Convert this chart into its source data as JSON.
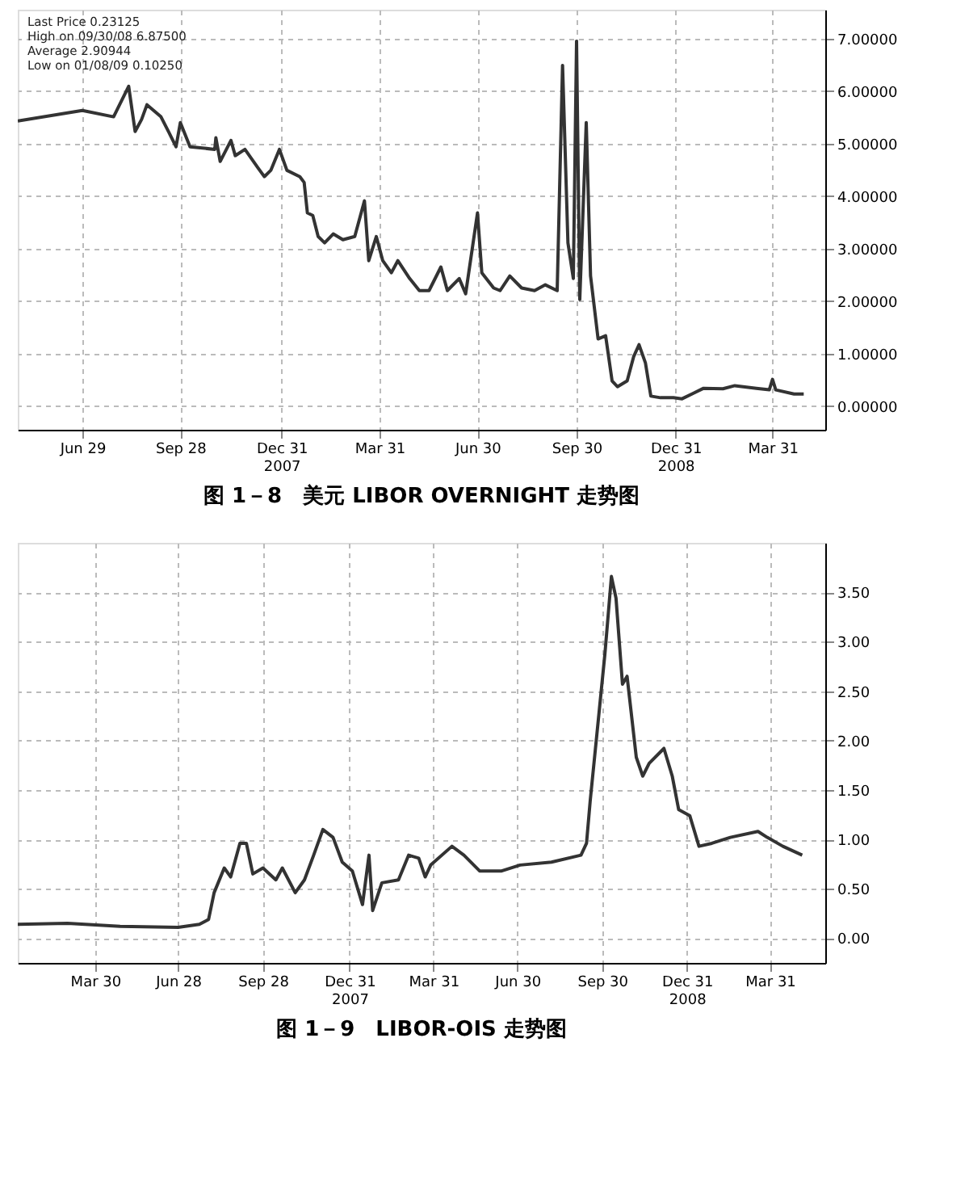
{
  "chart_data": [
    {
      "type": "line",
      "title": "图 1－8　美元 LIBOR OVERNIGHT 走势图",
      "annotations": [
        "Last Price  0.23125",
        "High on  09/30/08  6.87500",
        "Average  2.90944",
        "Low on  01/08/09  0.10250"
      ],
      "x": [
        "2007-04-30",
        "2007-06-29",
        "2007-07-28",
        "2007-08-11",
        "2007-08-17",
        "2007-08-23",
        "2007-08-28",
        "2007-09-10",
        "2007-09-17",
        "2007-09-24",
        "2007-09-28",
        "2007-10-07",
        "2007-10-30",
        "2007-10-31",
        "2007-11-04",
        "2007-11-14",
        "2007-11-18",
        "2007-11-27",
        "2007-12-09",
        "2007-12-15",
        "2007-12-21",
        "2007-12-29",
        "2008-01-05",
        "2008-01-17",
        "2008-01-21",
        "2008-01-24",
        "2008-01-29",
        "2008-02-03",
        "2008-02-09",
        "2008-02-17",
        "2008-02-26",
        "2008-03-08",
        "2008-03-17",
        "2008-03-21",
        "2008-03-28",
        "2008-04-03",
        "2008-04-11",
        "2008-04-17",
        "2008-04-28",
        "2008-05-07",
        "2008-05-16",
        "2008-05-27",
        "2008-06-02",
        "2008-06-13",
        "2008-06-19",
        "2008-06-30",
        "2008-07-04",
        "2008-07-15",
        "2008-07-21",
        "2008-07-30",
        "2008-08-10",
        "2008-08-22",
        "2008-09-01",
        "2008-09-12",
        "2008-09-17",
        "2008-09-22",
        "2008-09-27",
        "2008-09-30",
        "2008-10-03",
        "2008-10-09",
        "2008-10-13",
        "2008-10-20",
        "2008-10-27",
        "2008-11-02",
        "2008-11-07",
        "2008-11-16",
        "2008-11-22",
        "2008-11-27",
        "2008-12-03",
        "2008-12-08",
        "2008-12-17",
        "2008-12-29",
        "2009-01-06",
        "2009-01-17",
        "2009-01-26",
        "2009-02-13",
        "2009-02-24",
        "2009-03-16",
        "2009-03-28",
        "2009-03-31",
        "2009-04-03",
        "2009-04-20",
        "2009-04-29"
      ],
      "series": [
        {
          "color": "#333333",
          "values": [
            5.43,
            5.63,
            5.51,
            6.09,
            5.23,
            5.46,
            5.74,
            5.51,
            5.23,
            4.94,
            5.4,
            4.94,
            4.89,
            5.11,
            4.66,
            5.06,
            4.77,
            4.89,
            4.54,
            4.37,
            4.49,
            4.89,
            4.49,
            4.37,
            4.26,
            3.68,
            3.63,
            3.23,
            3.11,
            3.28,
            3.17,
            3.23,
            3.91,
            2.77,
            3.23,
            2.77,
            2.54,
            2.77,
            2.43,
            2.2,
            2.2,
            2.65,
            2.2,
            2.43,
            2.14,
            3.68,
            2.54,
            2.25,
            2.2,
            2.48,
            2.25,
            2.2,
            2.31,
            2.2,
            6.49,
            3.11,
            2.43,
            6.95,
            2.03,
            5.4,
            2.48,
            1.28,
            1.34,
            0.48,
            0.37,
            0.48,
            0.94,
            1.17,
            0.82,
            0.19,
            0.16,
            0.16,
            0.14,
            0.25,
            0.34,
            0.33,
            0.39,
            0.34,
            0.31,
            0.51,
            0.31,
            0.23,
            0.23
          ]
        }
      ],
      "xlim": [
        "2007-04-30",
        "2009-05-19"
      ],
      "xticks": [
        {
          "value": "2007-06-29",
          "label": "Jun 29"
        },
        {
          "value": "2007-09-28",
          "label": "Sep 28"
        },
        {
          "value": "2007-12-31",
          "label": "Dec 31\n2007"
        },
        {
          "value": "2008-03-31",
          "label": "Mar 31"
        },
        {
          "value": "2008-06-30",
          "label": "Jun 30"
        },
        {
          "value": "2008-09-30",
          "label": "Sep 30"
        },
        {
          "value": "2008-12-31",
          "label": "Dec 31\n2008"
        },
        {
          "value": "2009-03-31",
          "label": "Mar 31"
        }
      ],
      "ylim": [
        -0.45,
        7.55
      ],
      "yticks": [
        {
          "value": 0,
          "label": "0.00000"
        },
        {
          "value": 1,
          "label": "1.00000"
        },
        {
          "value": 2,
          "label": "2.00000"
        },
        {
          "value": 3,
          "label": "3.00000"
        },
        {
          "value": 4,
          "label": "4.00000"
        },
        {
          "value": 5,
          "label": "5.00000"
        },
        {
          "value": 6,
          "label": "6.00000"
        },
        {
          "value": 7,
          "label": "7.00000"
        }
      ],
      "grid": true,
      "line_style": "solid",
      "marker": "none"
    },
    {
      "type": "line",
      "title": "图 1－9　LIBOR-OIS 走势图",
      "x": [
        "2007-01-05",
        "2007-02-28",
        "2007-04-26",
        "2007-06-28",
        "2007-07-21",
        "2007-07-31",
        "2007-08-06",
        "2007-08-17",
        "2007-08-24",
        "2007-09-03",
        "2007-09-10",
        "2007-09-17",
        "2007-09-28",
        "2007-10-12",
        "2007-10-19",
        "2007-11-02",
        "2007-11-12",
        "2007-11-22",
        "2007-12-02",
        "2007-12-13",
        "2007-12-23",
        "2008-01-03",
        "2008-01-14",
        "2008-01-21",
        "2008-01-25",
        "2008-02-04",
        "2008-02-22",
        "2008-03-04",
        "2008-03-15",
        "2008-03-22",
        "2008-03-28",
        "2008-04-20",
        "2008-05-03",
        "2008-05-20",
        "2008-06-13",
        "2008-07-03",
        "2008-08-06",
        "2008-09-07",
        "2008-09-13",
        "2008-09-17",
        "2008-09-27",
        "2008-10-03",
        "2008-10-10",
        "2008-10-15",
        "2008-10-22",
        "2008-10-27",
        "2008-11-06",
        "2008-11-13",
        "2008-11-20",
        "2008-12-06",
        "2008-12-15",
        "2008-12-22",
        "2009-01-03",
        "2009-01-13",
        "2009-01-27",
        "2009-02-16",
        "2009-03-18",
        "2009-03-28",
        "2009-04-14",
        "2009-05-05"
      ],
      "series": [
        {
          "color": "#333333",
          "values": [
            0.14,
            0.15,
            0.12,
            0.11,
            0.14,
            0.19,
            0.46,
            0.71,
            0.62,
            0.96,
            0.96,
            0.65,
            0.71,
            0.59,
            0.71,
            0.46,
            0.59,
            0.84,
            1.1,
            1.02,
            0.77,
            0.68,
            0.34,
            0.84,
            0.28,
            0.56,
            0.59,
            0.84,
            0.81,
            0.62,
            0.74,
            0.93,
            0.84,
            0.68,
            0.68,
            0.74,
            0.77,
            0.84,
            0.96,
            1.39,
            2.32,
            2.88,
            3.66,
            3.44,
            2.57,
            2.65,
            1.83,
            1.64,
            1.77,
            1.92,
            1.64,
            1.3,
            1.24,
            0.93,
            0.96,
            1.02,
            1.08,
            1.02,
            0.93,
            0.84
          ]
        }
      ],
      "xlim": [
        "2007-01-05",
        "2009-05-30"
      ],
      "xticks": [
        {
          "value": "2007-03-30",
          "label": "Mar 30"
        },
        {
          "value": "2007-06-28",
          "label": "Jun 28"
        },
        {
          "value": "2007-09-28",
          "label": "Sep 28"
        },
        {
          "value": "2007-12-31",
          "label": "Dec 31\n2007"
        },
        {
          "value": "2008-03-31",
          "label": "Mar 31"
        },
        {
          "value": "2008-06-30",
          "label": "Jun 30"
        },
        {
          "value": "2008-09-30",
          "label": "Sep 30"
        },
        {
          "value": "2008-12-31",
          "label": "Dec 31\n2008"
        },
        {
          "value": "2009-03-31",
          "label": "Mar 31"
        }
      ],
      "ylim": [
        -0.25,
        4.0
      ],
      "yticks": [
        {
          "value": 0,
          "label": "0.00"
        },
        {
          "value": 0.5,
          "label": "0.50"
        },
        {
          "value": 1,
          "label": "1.00"
        },
        {
          "value": 1.5,
          "label": "1.50"
        },
        {
          "value": 2,
          "label": "2.00"
        },
        {
          "value": 2.5,
          "label": "2.50"
        },
        {
          "value": 3,
          "label": "3.00"
        },
        {
          "value": 3.5,
          "label": "3.50"
        }
      ],
      "grid": true,
      "line_style": "solid",
      "marker": "none"
    }
  ]
}
